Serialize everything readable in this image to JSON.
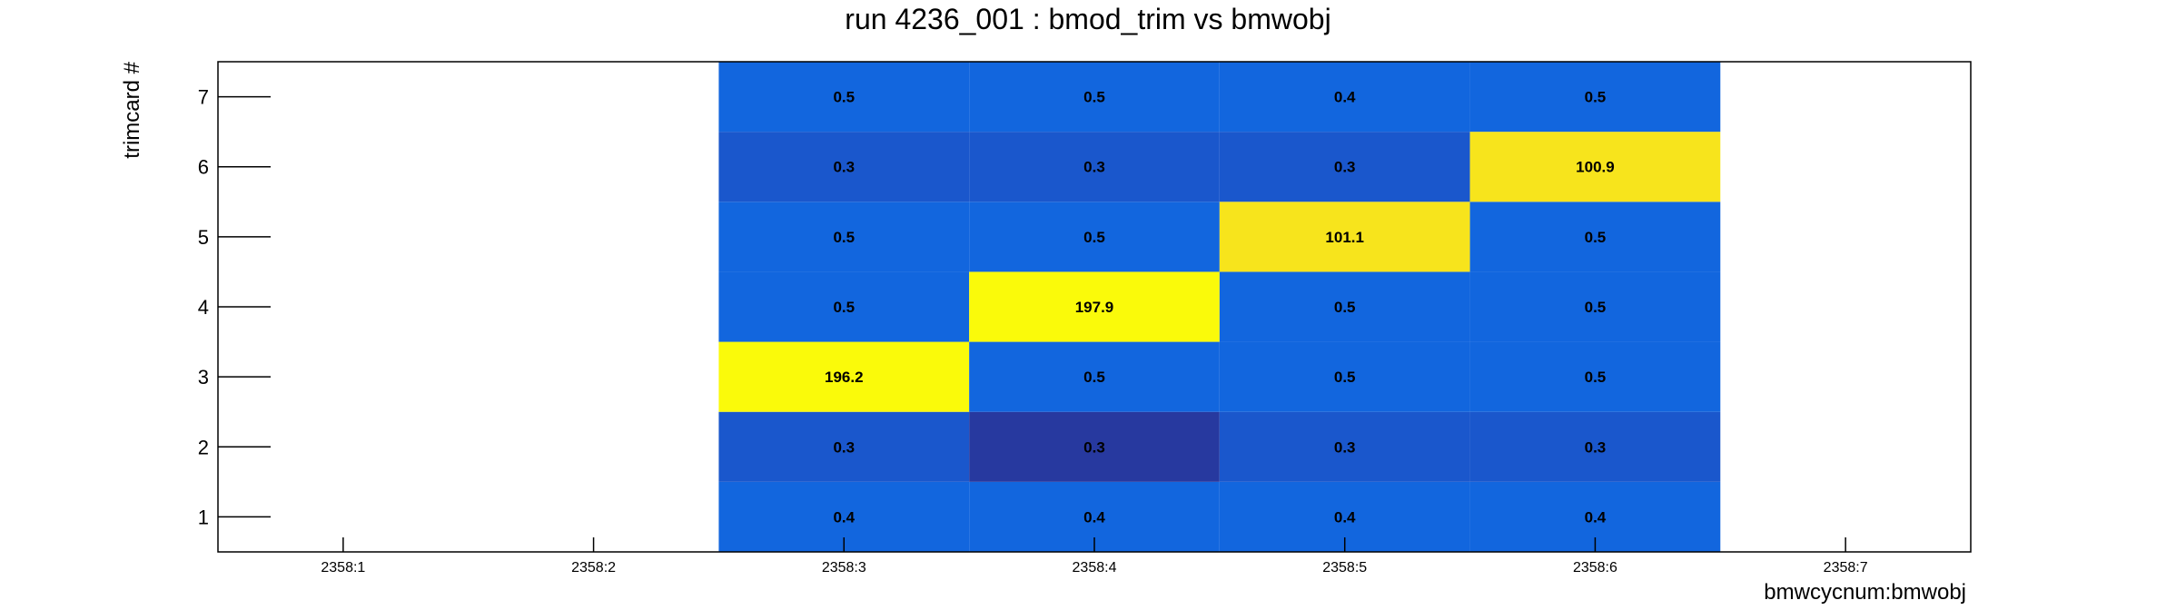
{
  "chart_data": {
    "type": "heatmap",
    "title": "run 4236_001 : bmod_trim vs bmwobj",
    "xlabel": "bmwcycnum:bmwobj",
    "ylabel": "trimcard #",
    "x_categories": [
      "2358:1",
      "2358:2",
      "2358:3",
      "2358:4",
      "2358:5",
      "2358:6",
      "2358:7"
    ],
    "y_categories": [
      "1",
      "2",
      "3",
      "4",
      "5",
      "6",
      "7"
    ],
    "grid": false,
    "colorscale": [
      "#27399f",
      "#1a57cc",
      "#1266de",
      "#f7e41c",
      "#fafa0a"
    ],
    "cells": [
      {
        "x": "2358:3",
        "y": "1",
        "value": 0.4,
        "label": "0.4"
      },
      {
        "x": "2358:3",
        "y": "2",
        "value": 0.3,
        "label": "0.3"
      },
      {
        "x": "2358:3",
        "y": "3",
        "value": 196.2,
        "label": "196.2"
      },
      {
        "x": "2358:3",
        "y": "4",
        "value": 0.5,
        "label": "0.5"
      },
      {
        "x": "2358:3",
        "y": "5",
        "value": 0.5,
        "label": "0.5"
      },
      {
        "x": "2358:3",
        "y": "6",
        "value": 0.3,
        "label": "0.3"
      },
      {
        "x": "2358:3",
        "y": "7",
        "value": 0.5,
        "label": "0.5"
      },
      {
        "x": "2358:4",
        "y": "1",
        "value": 0.4,
        "label": "0.4"
      },
      {
        "x": "2358:4",
        "y": "2",
        "value": 0.3,
        "label": "0.3"
      },
      {
        "x": "2358:4",
        "y": "3",
        "value": 0.5,
        "label": "0.5"
      },
      {
        "x": "2358:4",
        "y": "4",
        "value": 197.9,
        "label": "197.9"
      },
      {
        "x": "2358:4",
        "y": "5",
        "value": 0.5,
        "label": "0.5"
      },
      {
        "x": "2358:4",
        "y": "6",
        "value": 0.3,
        "label": "0.3"
      },
      {
        "x": "2358:4",
        "y": "7",
        "value": 0.5,
        "label": "0.5"
      },
      {
        "x": "2358:5",
        "y": "1",
        "value": 0.4,
        "label": "0.4"
      },
      {
        "x": "2358:5",
        "y": "2",
        "value": 0.3,
        "label": "0.3"
      },
      {
        "x": "2358:5",
        "y": "3",
        "value": 0.5,
        "label": "0.5"
      },
      {
        "x": "2358:5",
        "y": "4",
        "value": 0.5,
        "label": "0.5"
      },
      {
        "x": "2358:5",
        "y": "5",
        "value": 101.1,
        "label": "101.1"
      },
      {
        "x": "2358:5",
        "y": "6",
        "value": 0.3,
        "label": "0.3"
      },
      {
        "x": "2358:5",
        "y": "7",
        "value": 0.4,
        "label": "0.4"
      },
      {
        "x": "2358:6",
        "y": "1",
        "value": 0.4,
        "label": "0.4"
      },
      {
        "x": "2358:6",
        "y": "2",
        "value": 0.3,
        "label": "0.3"
      },
      {
        "x": "2358:6",
        "y": "3",
        "value": 0.5,
        "label": "0.5"
      },
      {
        "x": "2358:6",
        "y": "4",
        "value": 0.5,
        "label": "0.5"
      },
      {
        "x": "2358:6",
        "y": "5",
        "value": 0.5,
        "label": "0.5"
      },
      {
        "x": "2358:6",
        "y": "6",
        "value": 100.9,
        "label": "100.9"
      },
      {
        "x": "2358:6",
        "y": "7",
        "value": 0.5,
        "label": "0.5"
      }
    ]
  }
}
